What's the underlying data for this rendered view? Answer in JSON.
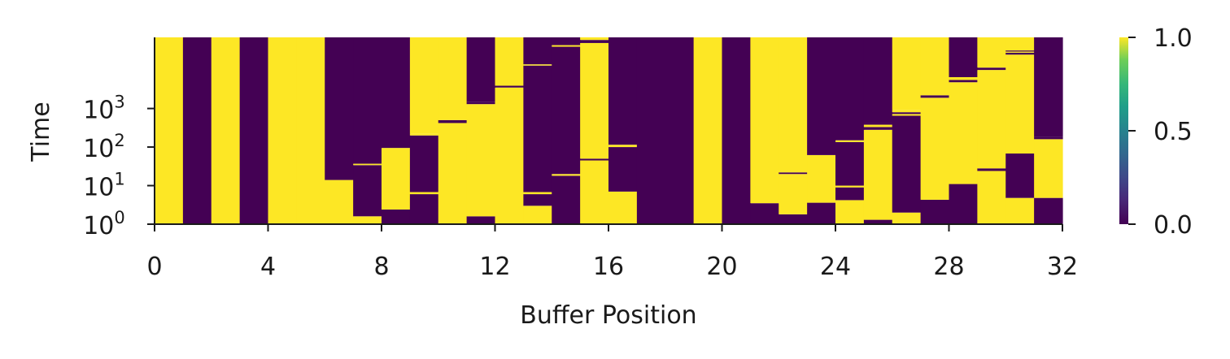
{
  "chart_data": {
    "type": "heatmap",
    "title": "",
    "xlabel": "Buffer Position",
    "ylabel": "Time",
    "x_ticks": [
      "0",
      "4",
      "8",
      "12",
      "16",
      "20",
      "24",
      "28",
      "32"
    ],
    "x_tick_values": [
      0,
      4,
      8,
      12,
      16,
      20,
      24,
      28,
      32
    ],
    "xlim": [
      0,
      32
    ],
    "y_scale": "log",
    "y_ticks": [
      {
        "base": "10",
        "exp": "0",
        "value": 1
      },
      {
        "base": "10",
        "exp": "1",
        "value": 10
      },
      {
        "base": "10",
        "exp": "2",
        "value": 100
      },
      {
        "base": "10",
        "exp": "3",
        "value": 1000
      }
    ],
    "ylim": [
      1,
      70000
    ],
    "colorbar": {
      "colormap": "viridis",
      "ticks": [
        "0.0",
        "0.5",
        "1.0"
      ],
      "tick_values": [
        0,
        0.5,
        1
      ],
      "range": [
        0,
        1
      ]
    },
    "colors": {
      "low": "#440154",
      "high": "#fde725",
      "mid": "#21918c"
    },
    "columns": [
      {
        "position": 0,
        "segments": [
          [
            1,
            70000,
            1
          ]
        ]
      },
      {
        "position": 1,
        "segments": [
          [
            1,
            70000,
            0
          ]
        ]
      },
      {
        "position": 2,
        "segments": [
          [
            1,
            70000,
            1
          ]
        ]
      },
      {
        "position": 3,
        "segments": [
          [
            1,
            70000,
            0
          ]
        ]
      },
      {
        "position": 4,
        "segments": [
          [
            1,
            70000,
            1
          ]
        ]
      },
      {
        "position": 5,
        "segments": [
          [
            1,
            70000,
            1
          ]
        ]
      },
      {
        "position": 6,
        "segments": [
          [
            1,
            14,
            1
          ],
          [
            14,
            70000,
            0
          ]
        ]
      },
      {
        "position": 7,
        "segments": [
          [
            1,
            1.6,
            1
          ],
          [
            1.6,
            34,
            0
          ],
          [
            34,
            37,
            1
          ],
          [
            37,
            70000,
            0
          ]
        ]
      },
      {
        "position": 8,
        "segments": [
          [
            1,
            2.4,
            0
          ],
          [
            2.4,
            95,
            1
          ],
          [
            95,
            70000,
            0
          ]
        ]
      },
      {
        "position": 9,
        "segments": [
          [
            1,
            6,
            0
          ],
          [
            6,
            6.8,
            1
          ],
          [
            6.8,
            200,
            0
          ],
          [
            200,
            220,
            1
          ],
          [
            220,
            70000,
            1
          ]
        ]
      },
      {
        "position": 10,
        "segments": [
          [
            1,
            420,
            1
          ],
          [
            420,
            500,
            0
          ],
          [
            500,
            70000,
            1
          ]
        ]
      },
      {
        "position": 11,
        "segments": [
          [
            1,
            1.6,
            0
          ],
          [
            1.6,
            1300,
            1
          ],
          [
            1300,
            1500,
            0
          ],
          [
            1500,
            70000,
            0
          ]
        ]
      },
      {
        "position": 12,
        "segments": [
          [
            1,
            3500,
            1
          ],
          [
            3500,
            3900,
            0
          ],
          [
            3900,
            70000,
            1
          ]
        ]
      },
      {
        "position": 13,
        "segments": [
          [
            1,
            3,
            1
          ],
          [
            3,
            6,
            0
          ],
          [
            6,
            6.8,
            1
          ],
          [
            6.8,
            13000,
            0
          ],
          [
            13000,
            14000,
            1
          ],
          [
            14000,
            70000,
            0
          ]
        ]
      },
      {
        "position": 14,
        "segments": [
          [
            1,
            18,
            0
          ],
          [
            18,
            20,
            1
          ],
          [
            20,
            40000,
            0
          ],
          [
            40000,
            44000,
            1
          ],
          [
            44000,
            70000,
            0
          ]
        ]
      },
      {
        "position": 15,
        "segments": [
          [
            1,
            45,
            1
          ],
          [
            45,
            50,
            0
          ],
          [
            50,
            50000,
            1
          ],
          [
            50000,
            60000,
            0
          ],
          [
            60000,
            70000,
            1
          ]
        ]
      },
      {
        "position": 16,
        "segments": [
          [
            1,
            7,
            1
          ],
          [
            7,
            100,
            0
          ],
          [
            100,
            115,
            1
          ],
          [
            115,
            70000,
            0
          ]
        ]
      },
      {
        "position": 17,
        "segments": [
          [
            1,
            70000,
            0
          ]
        ]
      },
      {
        "position": 18,
        "segments": [
          [
            1,
            70000,
            0
          ]
        ]
      },
      {
        "position": 19,
        "segments": [
          [
            1,
            70000,
            1
          ]
        ]
      },
      {
        "position": 20,
        "segments": [
          [
            1,
            70000,
            0
          ]
        ]
      },
      {
        "position": 21,
        "segments": [
          [
            1,
            3.5,
            0
          ],
          [
            3.5,
            70000,
            1
          ]
        ]
      },
      {
        "position": 22,
        "segments": [
          [
            1,
            1.8,
            0
          ],
          [
            1.8,
            20,
            1
          ],
          [
            20,
            22,
            0
          ],
          [
            22,
            70000,
            1
          ]
        ]
      },
      {
        "position": 23,
        "segments": [
          [
            1,
            3.6,
            0
          ],
          [
            3.6,
            62,
            1
          ],
          [
            62,
            70000,
            0
          ]
        ]
      },
      {
        "position": 24,
        "segments": [
          [
            1,
            4.2,
            1
          ],
          [
            4.2,
            9,
            0
          ],
          [
            9,
            10,
            1
          ],
          [
            10,
            135,
            0
          ],
          [
            135,
            150,
            1
          ],
          [
            150,
            70000,
            0
          ]
        ]
      },
      {
        "position": 25,
        "segments": [
          [
            1,
            1.3,
            0
          ],
          [
            1.3,
            280,
            1
          ],
          [
            280,
            330,
            0
          ],
          [
            330,
            380,
            1
          ],
          [
            380,
            420,
            0
          ],
          [
            420,
            70000,
            0
          ]
        ]
      },
      {
        "position": 26,
        "segments": [
          [
            1,
            2,
            1
          ],
          [
            2,
            650,
            0
          ],
          [
            650,
            720,
            1
          ],
          [
            720,
            800,
            0
          ],
          [
            800,
            900,
            1
          ],
          [
            900,
            70000,
            1
          ]
        ]
      },
      {
        "position": 27,
        "segments": [
          [
            1,
            4.3,
            0
          ],
          [
            4.3,
            1900,
            1
          ],
          [
            1900,
            2200,
            0
          ],
          [
            2200,
            70000,
            1
          ]
        ]
      },
      {
        "position": 28,
        "segments": [
          [
            1,
            11,
            0
          ],
          [
            11,
            4800,
            1
          ],
          [
            4800,
            5500,
            0
          ],
          [
            5500,
            6500,
            1
          ],
          [
            6500,
            70000,
            0
          ]
        ]
      },
      {
        "position": 29,
        "segments": [
          [
            1,
            24,
            1
          ],
          [
            24,
            28,
            0
          ],
          [
            28,
            10000,
            1
          ],
          [
            10000,
            11500,
            0
          ],
          [
            11500,
            70000,
            1
          ]
        ]
      },
      {
        "position": 30,
        "segments": [
          [
            1,
            4.8,
            1
          ],
          [
            4.8,
            68,
            0
          ],
          [
            68,
            75,
            1
          ],
          [
            75,
            25000,
            1
          ],
          [
            25000,
            28000,
            0
          ],
          [
            28000,
            30000,
            1
          ],
          [
            30000,
            32000,
            0
          ],
          [
            32000,
            70000,
            1
          ]
        ]
      },
      {
        "position": 31,
        "segments": [
          [
            1,
            4.8,
            0
          ],
          [
            4.8,
            160,
            1
          ],
          [
            160,
            185,
            0
          ],
          [
            185,
            70000,
            0
          ]
        ]
      }
    ]
  }
}
